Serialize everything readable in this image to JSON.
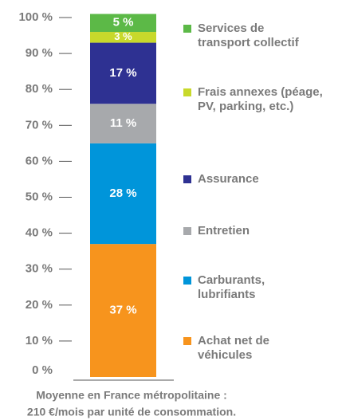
{
  "chart_data": {
    "type": "stacked-bar",
    "series": [
      {
        "name": "Achat net de véhicules",
        "color": "#f7941d",
        "values": [
          37
        ],
        "value_labels": [
          "37 %"
        ]
      },
      {
        "name": "Carburants, lubrifiants",
        "color": "#0095da",
        "values": [
          28
        ],
        "value_labels": [
          "28 %"
        ]
      },
      {
        "name": "Entretien",
        "color": "#a7a9ac",
        "values": [
          11
        ],
        "value_labels": [
          "11 %"
        ]
      },
      {
        "name": "Assurance",
        "color": "#2e3192",
        "values": [
          17
        ],
        "value_labels": [
          "17 %"
        ]
      },
      {
        "name": "Frais annexes (péage, PV, parking, etc.)",
        "color": "#c8d92b",
        "values": [
          3
        ],
        "value_labels": [
          "3 %"
        ]
      },
      {
        "name": "Services de transport collectif",
        "color": "#5cb947",
        "values": [
          5
        ],
        "value_labels": [
          "5 %"
        ]
      }
    ],
    "ylim": [
      0,
      100
    ],
    "yticks": [
      {
        "value": 0,
        "label": "0 %"
      },
      {
        "value": 10,
        "label": "10 %"
      },
      {
        "value": 20,
        "label": "20 %"
      },
      {
        "value": 30,
        "label": "30 %"
      },
      {
        "value": 40,
        "label": "40 %"
      },
      {
        "value": 50,
        "label": "50 %"
      },
      {
        "value": 60,
        "label": "60 %"
      },
      {
        "value": 70,
        "label": "70 %"
      },
      {
        "value": 80,
        "label": "80 %"
      },
      {
        "value": 90,
        "label": "90 %"
      },
      {
        "value": 100,
        "label": "100 %"
      }
    ],
    "footnote": [
      "Moyenne en France métropolitaine :",
      "210 €/mois par unité de consommation."
    ]
  }
}
